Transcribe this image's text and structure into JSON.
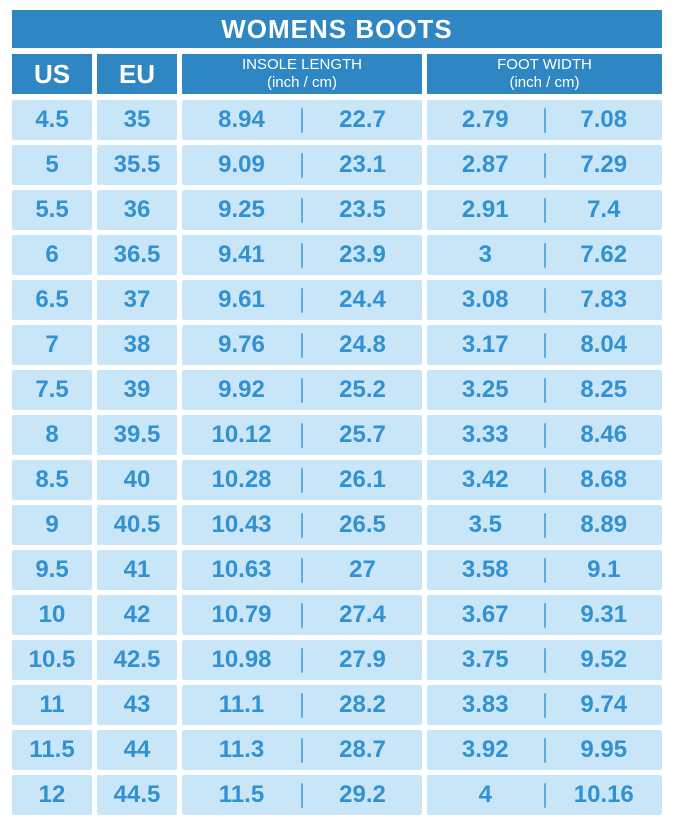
{
  "title": "WOMENS BOOTS",
  "header": {
    "us": "US",
    "eu": "EU",
    "insole_length": {
      "label": "INSOLE LENGTH",
      "units": "(inch / cm)"
    },
    "foot_width": {
      "label": "FOOT WIDTH",
      "units": "(inch / cm)"
    }
  },
  "colors": {
    "header_blue": "#2E86C2",
    "cell_background": "#C9E6F8",
    "cell_text": "#3191D2",
    "divider": "#5CACDF",
    "page_background": "#FFFFFF",
    "header_text": "#FFFFFF"
  },
  "chart_data": {
    "type": "table",
    "title": "WOMENS BOOTS",
    "columns": [
      "US",
      "EU",
      "INSOLE LENGTH (inch)",
      "INSOLE LENGTH (cm)",
      "FOOT WIDTH (inch)",
      "FOOT WIDTH (cm)"
    ],
    "rows": [
      {
        "us": "4.5",
        "eu": "35",
        "insole_inch": "8.94",
        "insole_cm": "22.7",
        "width_inch": "2.79",
        "width_cm": "7.08"
      },
      {
        "us": "5",
        "eu": "35.5",
        "insole_inch": "9.09",
        "insole_cm": "23.1",
        "width_inch": "2.87",
        "width_cm": "7.29"
      },
      {
        "us": "5.5",
        "eu": "36",
        "insole_inch": "9.25",
        "insole_cm": "23.5",
        "width_inch": "2.91",
        "width_cm": "7.4"
      },
      {
        "us": "6",
        "eu": "36.5",
        "insole_inch": "9.41",
        "insole_cm": "23.9",
        "width_inch": "3",
        "width_cm": "7.62"
      },
      {
        "us": "6.5",
        "eu": "37",
        "insole_inch": "9.61",
        "insole_cm": "24.4",
        "width_inch": "3.08",
        "width_cm": "7.83"
      },
      {
        "us": "7",
        "eu": "38",
        "insole_inch": "9.76",
        "insole_cm": "24.8",
        "width_inch": "3.17",
        "width_cm": "8.04"
      },
      {
        "us": "7.5",
        "eu": "39",
        "insole_inch": "9.92",
        "insole_cm": "25.2",
        "width_inch": "3.25",
        "width_cm": "8.25"
      },
      {
        "us": "8",
        "eu": "39.5",
        "insole_inch": "10.12",
        "insole_cm": "25.7",
        "width_inch": "3.33",
        "width_cm": "8.46"
      },
      {
        "us": "8.5",
        "eu": "40",
        "insole_inch": "10.28",
        "insole_cm": "26.1",
        "width_inch": "3.42",
        "width_cm": "8.68"
      },
      {
        "us": "9",
        "eu": "40.5",
        "insole_inch": "10.43",
        "insole_cm": "26.5",
        "width_inch": "3.5",
        "width_cm": "8.89"
      },
      {
        "us": "9.5",
        "eu": "41",
        "insole_inch": "10.63",
        "insole_cm": "27",
        "width_inch": "3.58",
        "width_cm": "9.1"
      },
      {
        "us": "10",
        "eu": "42",
        "insole_inch": "10.79",
        "insole_cm": "27.4",
        "width_inch": "3.67",
        "width_cm": "9.31"
      },
      {
        "us": "10.5",
        "eu": "42.5",
        "insole_inch": "10.98",
        "insole_cm": "27.9",
        "width_inch": "3.75",
        "width_cm": "9.52"
      },
      {
        "us": "11",
        "eu": "43",
        "insole_inch": "11.1",
        "insole_cm": "28.2",
        "width_inch": "3.83",
        "width_cm": "9.74"
      },
      {
        "us": "11.5",
        "eu": "44",
        "insole_inch": "11.3",
        "insole_cm": "28.7",
        "width_inch": "3.92",
        "width_cm": "9.95"
      },
      {
        "us": "12",
        "eu": "44.5",
        "insole_inch": "11.5",
        "insole_cm": "29.2",
        "width_inch": "4",
        "width_cm": "10.16"
      }
    ]
  }
}
